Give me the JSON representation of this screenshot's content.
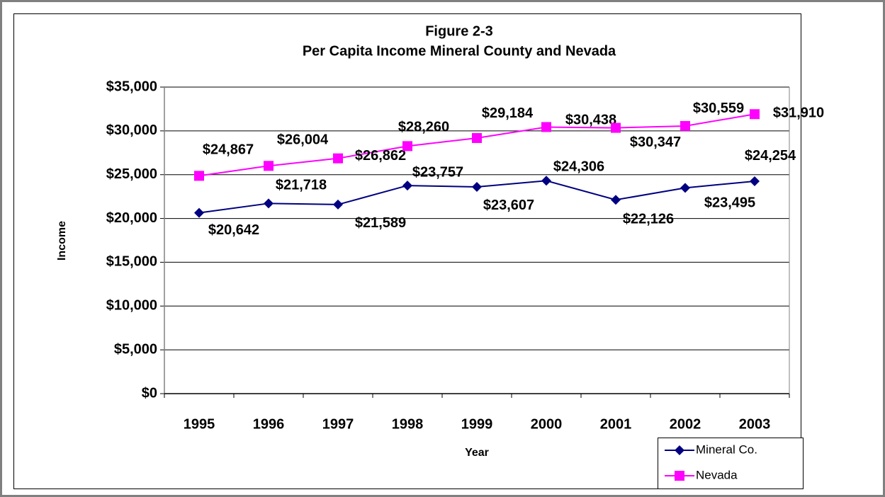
{
  "chart_data": {
    "type": "line",
    "title": "Figure 2-3",
    "subtitle": "Per Capita Income Mineral County and Nevada",
    "x_label": "Year",
    "y_label": "Income",
    "categories": [
      "1995",
      "1996",
      "1997",
      "1998",
      "1999",
      "2000",
      "2001",
      "2002",
      "2003"
    ],
    "series": [
      {
        "name": "Mineral Co.",
        "color": "#000080",
        "marker": "diamond",
        "values": [
          20642,
          21718,
          21589,
          23757,
          23607,
          24306,
          22126,
          23495,
          24254
        ],
        "value_labels": [
          "$20,642",
          "$21,718",
          "$21,589",
          "$23,757",
          "$23,607",
          "$24,306",
          "$22,126",
          "$23,495",
          "$24,254"
        ]
      },
      {
        "name": "Nevada",
        "color": "#ff00ff",
        "marker": "square",
        "values": [
          24867,
          26004,
          26862,
          28260,
          29184,
          30438,
          30347,
          30559,
          31910
        ],
        "value_labels": [
          "$24,867",
          "$26,004",
          "$26,862",
          "$28,260",
          "$29,184",
          "$30,438",
          "$30,347",
          "$30,559",
          "$31,910"
        ]
      }
    ],
    "ylim": [
      0,
      35000
    ],
    "yticks": [
      {
        "value": 0,
        "label": "$0"
      },
      {
        "value": 5000,
        "label": "$5,000"
      },
      {
        "value": 10000,
        "label": "$10,000"
      },
      {
        "value": 15000,
        "label": "$15,000"
      },
      {
        "value": 20000,
        "label": "$20,000"
      },
      {
        "value": 25000,
        "label": "$25,000"
      },
      {
        "value": 30000,
        "label": "$30,000"
      },
      {
        "value": 35000,
        "label": "$35,000"
      }
    ],
    "grid": true,
    "legend": "lower right"
  }
}
